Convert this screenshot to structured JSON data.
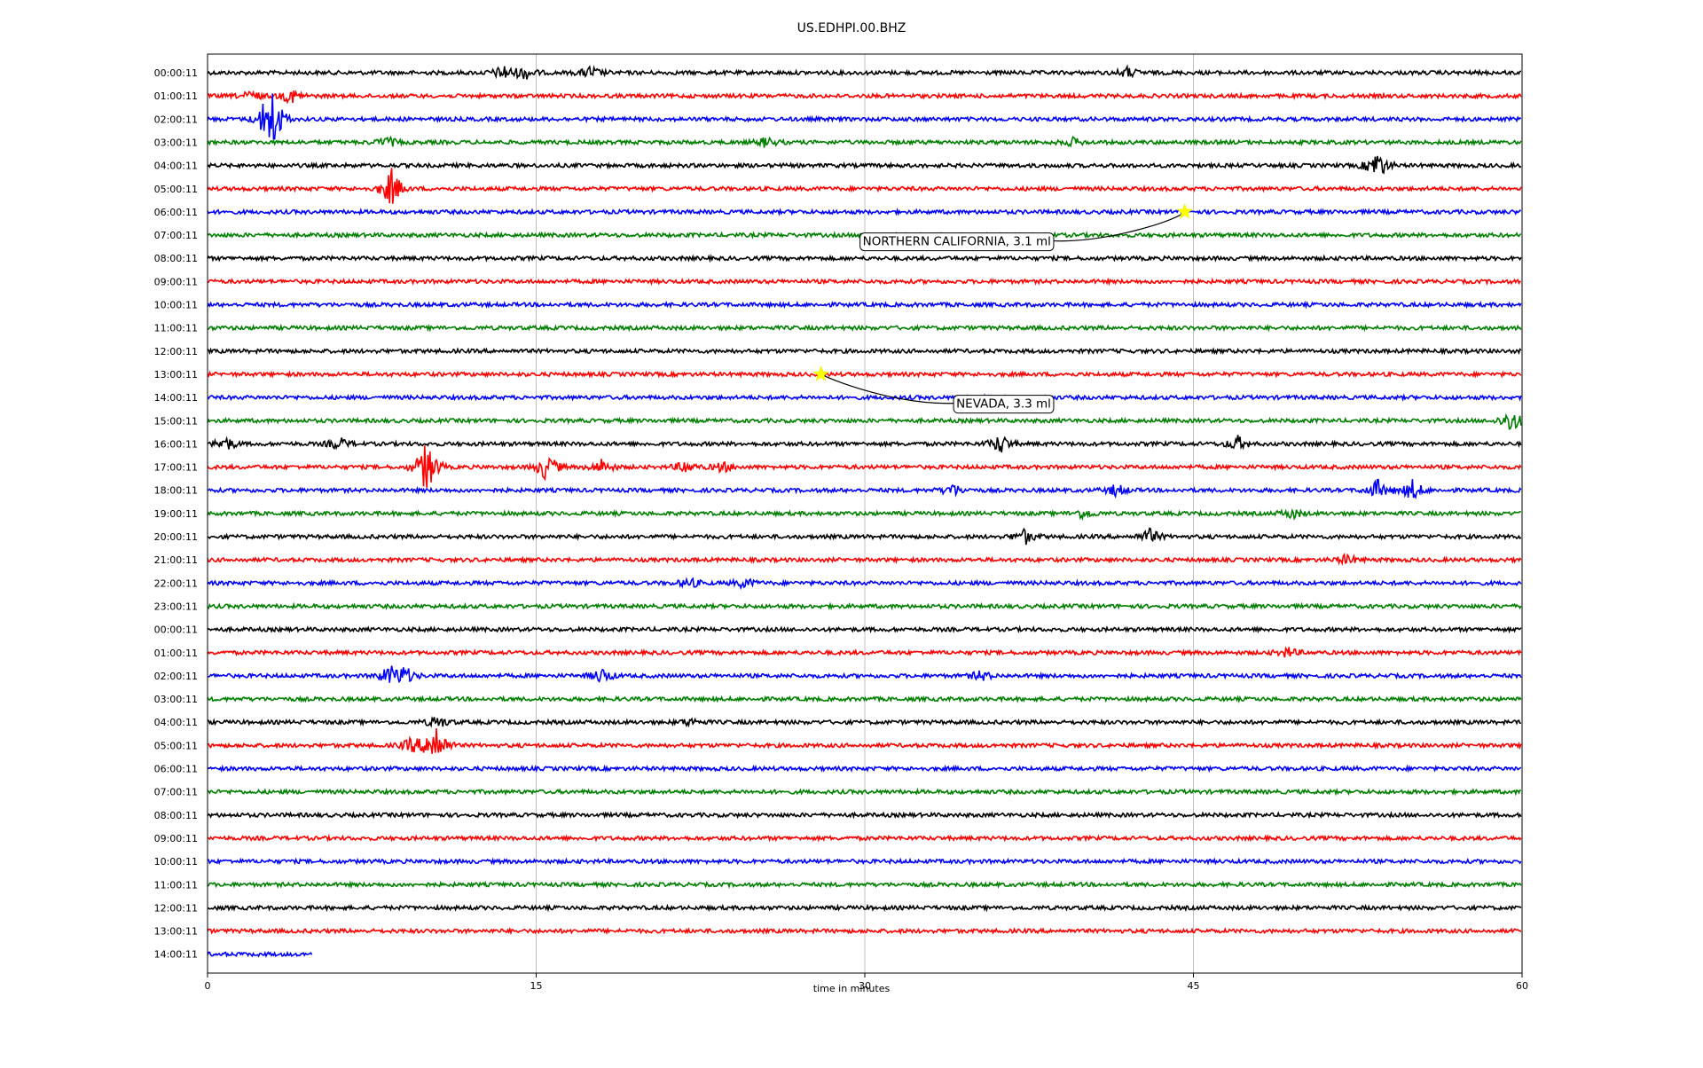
{
  "chart_data": {
    "type": "line",
    "title": "US.EDHPI.00.BHZ",
    "xlabel": "time in minutes",
    "ylabel": "",
    "xlim": [
      0,
      60
    ],
    "x_ticks": [
      0,
      15,
      30,
      45,
      60
    ],
    "x_tick_labels": [
      "0",
      "15",
      "30",
      "45",
      "60"
    ],
    "grid": "vertical lines at x ticks",
    "row_labels": [
      "00:00:11",
      "01:00:11",
      "02:00:11",
      "03:00:11",
      "04:00:11",
      "05:00:11",
      "06:00:11",
      "07:00:11",
      "08:00:11",
      "09:00:11",
      "10:00:11",
      "11:00:11",
      "12:00:11",
      "13:00:11",
      "14:00:11",
      "15:00:11",
      "16:00:11",
      "17:00:11",
      "18:00:11",
      "19:00:11",
      "20:00:11",
      "21:00:11",
      "22:00:11",
      "23:00:11",
      "00:00:11",
      "01:00:11",
      "02:00:11",
      "03:00:11",
      "04:00:11",
      "05:00:11",
      "06:00:11",
      "07:00:11",
      "08:00:11",
      "09:00:11",
      "10:00:11",
      "11:00:11",
      "12:00:11",
      "13:00:11",
      "14:00:11"
    ],
    "trace_colors": [
      "#000000",
      "#ff0000",
      "#0000ff",
      "#008000"
    ],
    "last_row_end_minute": 4.8,
    "bursts": [
      {
        "row": 0,
        "minute": 13.5,
        "amp": 0.6
      },
      {
        "row": 0,
        "minute": 14.5,
        "amp": 0.5
      },
      {
        "row": 0,
        "minute": 17.5,
        "amp": 0.5
      },
      {
        "row": 0,
        "minute": 42,
        "amp": 0.4
      },
      {
        "row": 1,
        "minute": 2.0,
        "amp": 0.4
      },
      {
        "row": 1,
        "minute": 3.8,
        "amp": 0.6
      },
      {
        "row": 2,
        "minute": 2.7,
        "amp": 1.2
      },
      {
        "row": 2,
        "minute": 3.0,
        "amp": 2.0
      },
      {
        "row": 3,
        "minute": 8.2,
        "amp": 0.4
      },
      {
        "row": 3,
        "minute": 25.5,
        "amp": 0.4
      },
      {
        "row": 3,
        "minute": 39.5,
        "amp": 0.3
      },
      {
        "row": 4,
        "minute": 53.4,
        "amp": 1.2
      },
      {
        "row": 5,
        "minute": 8.4,
        "amp": 1.6
      },
      {
        "row": 15,
        "minute": 59.5,
        "amp": 1.0
      },
      {
        "row": 16,
        "minute": 0.8,
        "amp": 0.6
      },
      {
        "row": 16,
        "minute": 6.0,
        "amp": 0.5
      },
      {
        "row": 16,
        "minute": 36.2,
        "amp": 0.8
      },
      {
        "row": 16,
        "minute": 47.0,
        "amp": 0.6
      },
      {
        "row": 17,
        "minute": 10.0,
        "amp": 2.2
      },
      {
        "row": 17,
        "minute": 15.5,
        "amp": 1.2
      },
      {
        "row": 17,
        "minute": 18.0,
        "amp": 0.6
      },
      {
        "row": 17,
        "minute": 21.8,
        "amp": 0.5
      },
      {
        "row": 17,
        "minute": 23.5,
        "amp": 0.4
      },
      {
        "row": 18,
        "minute": 34.0,
        "amp": 0.5
      },
      {
        "row": 18,
        "minute": 41.5,
        "amp": 0.5
      },
      {
        "row": 18,
        "minute": 53.4,
        "amp": 0.8
      },
      {
        "row": 18,
        "minute": 55.0,
        "amp": 0.8
      },
      {
        "row": 19,
        "minute": 40.0,
        "amp": 0.4
      },
      {
        "row": 19,
        "minute": 49.5,
        "amp": 0.4
      },
      {
        "row": 20,
        "minute": 37.3,
        "amp": 0.6
      },
      {
        "row": 20,
        "minute": 43.0,
        "amp": 0.6
      },
      {
        "row": 21,
        "minute": 52.0,
        "amp": 0.4
      },
      {
        "row": 22,
        "minute": 22.0,
        "amp": 0.4
      },
      {
        "row": 22,
        "minute": 24.5,
        "amp": 0.4
      },
      {
        "row": 26,
        "minute": 8.3,
        "amp": 0.8
      },
      {
        "row": 26,
        "minute": 9.0,
        "amp": 0.7
      },
      {
        "row": 26,
        "minute": 18.0,
        "amp": 0.6
      },
      {
        "row": 26,
        "minute": 35.3,
        "amp": 0.4
      },
      {
        "row": 28,
        "minute": 10.5,
        "amp": 0.5
      },
      {
        "row": 28,
        "minute": 22.0,
        "amp": 0.3
      },
      {
        "row": 29,
        "minute": 9.3,
        "amp": 0.6
      },
      {
        "row": 29,
        "minute": 10.4,
        "amp": 2.0
      },
      {
        "row": 25,
        "minute": 49.3,
        "amp": 0.4
      }
    ],
    "events": [
      {
        "label": "NORTHERN CALIFORNIA, 3.1 ml",
        "row": 6,
        "minute": 44.6,
        "marker": "star",
        "marker_color": "#ffff00",
        "label_anchor_minute": 38.5,
        "label_row_offset": 1.25
      },
      {
        "label": "NEVADA, 3.3 ml",
        "row": 13,
        "minute": 28.0,
        "marker": "star",
        "marker_color": "#ffff00",
        "label_anchor_minute": 38.5,
        "label_row_offset": 1.25
      }
    ]
  }
}
